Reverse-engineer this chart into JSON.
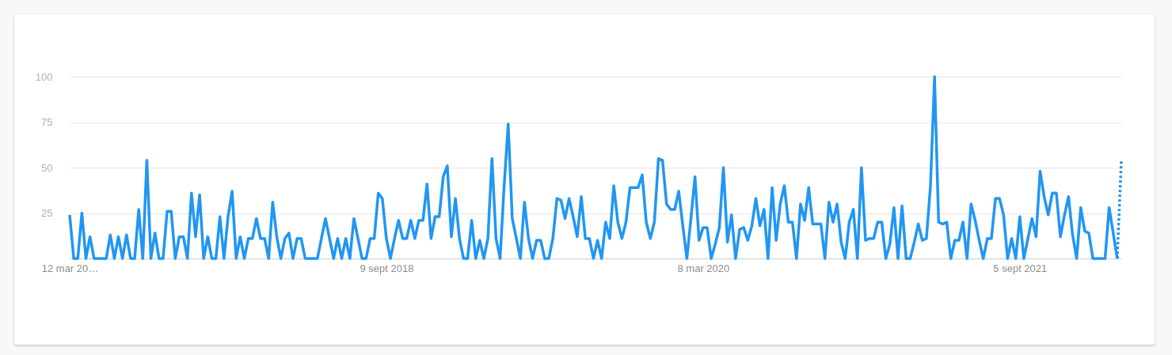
{
  "chart_data": {
    "type": "line",
    "grid": "y",
    "xlim": [
      "2017-03-12",
      "2022-02-27"
    ],
    "xticks": [
      {
        "value": "2017-03-12",
        "label": "12 mar 20…"
      },
      {
        "value": "2018-09-09",
        "label": "9 sept 2018"
      },
      {
        "value": "2020-03-08",
        "label": "8 mar 2020"
      },
      {
        "value": "2021-09-05",
        "label": "5 sept 2021"
      }
    ],
    "ylim": [
      0,
      100
    ],
    "yticks": [
      25,
      50,
      75,
      100
    ],
    "series": [
      {
        "color": "#2196f3",
        "line_style": "solid",
        "x": [
          "2017-03-12",
          "2017-03-19",
          "2017-03-26",
          "2017-04-02",
          "2017-04-09",
          "2017-04-16",
          "2017-04-23",
          "2017-04-30",
          "2017-05-07",
          "2017-05-14",
          "2017-05-21",
          "2017-05-28",
          "2017-06-04",
          "2017-06-11",
          "2017-06-18",
          "2017-06-25",
          "2017-07-02",
          "2017-07-09",
          "2017-07-16",
          "2017-07-23",
          "2017-07-30",
          "2017-08-06",
          "2017-08-13",
          "2017-08-20",
          "2017-08-27",
          "2017-09-03",
          "2017-09-10",
          "2017-09-17",
          "2017-09-24",
          "2017-10-01",
          "2017-10-08",
          "2017-10-15",
          "2017-10-22",
          "2017-10-29",
          "2017-11-05",
          "2017-11-12",
          "2017-11-19",
          "2017-11-26",
          "2017-12-03",
          "2017-12-10",
          "2017-12-17",
          "2017-12-24",
          "2017-12-31",
          "2018-01-07",
          "2018-01-14",
          "2018-01-21",
          "2018-01-28",
          "2018-02-04",
          "2018-02-11",
          "2018-02-18",
          "2018-02-25",
          "2018-03-04",
          "2018-03-11",
          "2018-03-18",
          "2018-03-25",
          "2018-04-01",
          "2018-04-08",
          "2018-04-15",
          "2018-04-22",
          "2018-04-29",
          "2018-05-06",
          "2018-05-13",
          "2018-05-20",
          "2018-05-27",
          "2018-06-03",
          "2018-06-10",
          "2018-06-17",
          "2018-06-24",
          "2018-07-01",
          "2018-07-08",
          "2018-07-15",
          "2018-07-22",
          "2018-07-29",
          "2018-08-05",
          "2018-08-12",
          "2018-08-19",
          "2018-08-26",
          "2018-09-02",
          "2018-09-09",
          "2018-09-16",
          "2018-09-23",
          "2018-09-30",
          "2018-10-07",
          "2018-10-14",
          "2018-10-21",
          "2018-10-28",
          "2018-11-04",
          "2018-11-11",
          "2018-11-18",
          "2018-11-25",
          "2018-12-02",
          "2018-12-09",
          "2018-12-16",
          "2018-12-23",
          "2018-12-30",
          "2019-01-06",
          "2019-01-13",
          "2019-01-20",
          "2019-01-27",
          "2019-02-03",
          "2019-02-10",
          "2019-02-17",
          "2019-02-24",
          "2019-03-03",
          "2019-03-10",
          "2019-03-17",
          "2019-03-24",
          "2019-03-31",
          "2019-04-07",
          "2019-04-14",
          "2019-04-21",
          "2019-04-28",
          "2019-05-05",
          "2019-05-12",
          "2019-05-19",
          "2019-05-26",
          "2019-06-02",
          "2019-06-09",
          "2019-06-16",
          "2019-06-23",
          "2019-06-30",
          "2019-07-07",
          "2019-07-14",
          "2019-07-21",
          "2019-07-28",
          "2019-08-04",
          "2019-08-11",
          "2019-08-18",
          "2019-08-25",
          "2019-09-01",
          "2019-09-08",
          "2019-09-15",
          "2019-09-22",
          "2019-09-29",
          "2019-10-06",
          "2019-10-13",
          "2019-10-20",
          "2019-10-27",
          "2019-11-03",
          "2019-11-10",
          "2019-11-17",
          "2019-11-24",
          "2019-12-01",
          "2019-12-08",
          "2019-12-15",
          "2019-12-22",
          "2019-12-29",
          "2020-01-05",
          "2020-01-12",
          "2020-01-19",
          "2020-01-26",
          "2020-02-02",
          "2020-02-09",
          "2020-02-16",
          "2020-02-23",
          "2020-03-01",
          "2020-03-08",
          "2020-03-15",
          "2020-03-22",
          "2020-03-29",
          "2020-04-05",
          "2020-04-12",
          "2020-04-19",
          "2020-04-26",
          "2020-05-03",
          "2020-05-10",
          "2020-05-17",
          "2020-05-24",
          "2020-05-31",
          "2020-06-07",
          "2020-06-14",
          "2020-06-21",
          "2020-06-28",
          "2020-07-05",
          "2020-07-12",
          "2020-07-19",
          "2020-07-26",
          "2020-08-02",
          "2020-08-09",
          "2020-08-16",
          "2020-08-23",
          "2020-08-30",
          "2020-09-06",
          "2020-09-13",
          "2020-09-20",
          "2020-09-27",
          "2020-10-04",
          "2020-10-11",
          "2020-10-18",
          "2020-10-25",
          "2020-11-01",
          "2020-11-08",
          "2020-11-15",
          "2020-11-22",
          "2020-11-29",
          "2020-12-06",
          "2020-12-13",
          "2020-12-20",
          "2020-12-27",
          "2021-01-03",
          "2021-01-10",
          "2021-01-17",
          "2021-01-24",
          "2021-01-31",
          "2021-02-07",
          "2021-02-14",
          "2021-02-21",
          "2021-02-28",
          "2021-03-07",
          "2021-03-14",
          "2021-03-21",
          "2021-03-28",
          "2021-04-04",
          "2021-04-11",
          "2021-04-18",
          "2021-04-25",
          "2021-05-02",
          "2021-05-09",
          "2021-05-16",
          "2021-05-23",
          "2021-05-30",
          "2021-06-06",
          "2021-06-13",
          "2021-06-20",
          "2021-06-27",
          "2021-07-04",
          "2021-07-11",
          "2021-07-18",
          "2021-07-25",
          "2021-08-01",
          "2021-08-08",
          "2021-08-15",
          "2021-08-22",
          "2021-08-29",
          "2021-09-05",
          "2021-09-12",
          "2021-09-19",
          "2021-09-26",
          "2021-10-03",
          "2021-10-10",
          "2021-10-17",
          "2021-10-24",
          "2021-10-31",
          "2021-11-07",
          "2021-11-14",
          "2021-11-21",
          "2021-11-28",
          "2021-12-05",
          "2021-12-12",
          "2021-12-19",
          "2021-12-26",
          "2022-01-02",
          "2022-01-09",
          "2022-01-16",
          "2022-01-23",
          "2022-01-30",
          "2022-02-06",
          "2022-02-13",
          "2022-02-20"
        ],
        "values": [
          24,
          0,
          0,
          25,
          0,
          12,
          0,
          0,
          0,
          0,
          13,
          0,
          12,
          0,
          13,
          0,
          0,
          27,
          0,
          54,
          0,
          14,
          0,
          0,
          26,
          26,
          0,
          12,
          12,
          0,
          36,
          12,
          35,
          0,
          12,
          0,
          0,
          23,
          0,
          23,
          37,
          0,
          12,
          0,
          11,
          11,
          22,
          11,
          11,
          0,
          31,
          12,
          0,
          11,
          14,
          0,
          11,
          11,
          0,
          0,
          0,
          0,
          11,
          22,
          11,
          0,
          11,
          0,
          11,
          0,
          22,
          11,
          0,
          0,
          11,
          11,
          36,
          33,
          11,
          0,
          11,
          21,
          11,
          11,
          21,
          11,
          21,
          21,
          41,
          11,
          23,
          23,
          45,
          51,
          12,
          33,
          11,
          0,
          0,
          21,
          0,
          10,
          0,
          11,
          55,
          11,
          0,
          40,
          74,
          22,
          11,
          0,
          31,
          11,
          0,
          10,
          10,
          0,
          0,
          11,
          33,
          32,
          22,
          33,
          23,
          12,
          34,
          11,
          11,
          0,
          10,
          0,
          20,
          11,
          40,
          20,
          11,
          20,
          39,
          39,
          39,
          46,
          20,
          11,
          20,
          55,
          54,
          30,
          27,
          27,
          37,
          18,
          0,
          22,
          45,
          10,
          17,
          17,
          0,
          8,
          17,
          50,
          9,
          24,
          0,
          16,
          17,
          10,
          18,
          33,
          18,
          27,
          0,
          39,
          10,
          30,
          40,
          20,
          20,
          0,
          30,
          21,
          39,
          19,
          19,
          19,
          0,
          31,
          20,
          30,
          9,
          0,
          20,
          27,
          0,
          50,
          10,
          11,
          11,
          20,
          20,
          0,
          8,
          28,
          0,
          29,
          0,
          0,
          9,
          19,
          10,
          11,
          40,
          100,
          20,
          19,
          20,
          0,
          10,
          10,
          20,
          0,
          30,
          21,
          10,
          0,
          11,
          11,
          33,
          33,
          24,
          0,
          11,
          0,
          23,
          0,
          11,
          22,
          12,
          48,
          34,
          24,
          36,
          36,
          12,
          24,
          34,
          13,
          0,
          28,
          15,
          14,
          0,
          0,
          0,
          0,
          28,
          14,
          0
        ]
      },
      {
        "color": "#2196f3",
        "line_style": "dotted",
        "x": [
          "2022-02-20",
          "2022-02-27"
        ],
        "values": [
          0,
          54
        ]
      }
    ]
  }
}
